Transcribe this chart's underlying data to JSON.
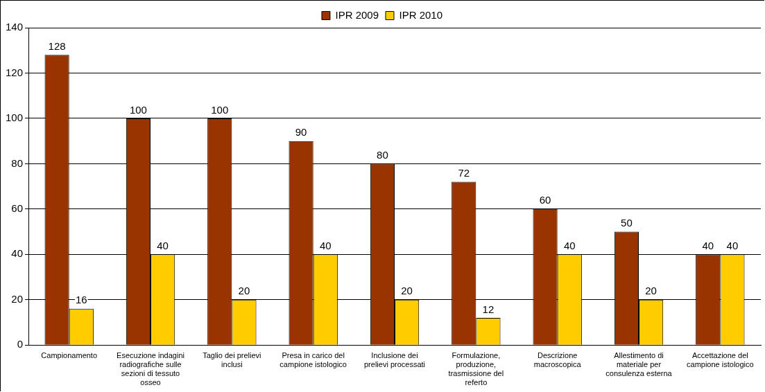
{
  "chart_data": {
    "type": "bar",
    "categories": [
      "Campionamento",
      "Esecuzione indagini radiografiche sulle sezioni di tessuto osseo",
      "Taglio dei prelievi inclusi",
      "Presa in carico del campione istologico",
      "Inclusione dei prelievi processati",
      "Formulazione, produzione, trasmissione del referto",
      "Descrizione macroscopica",
      "Allestimento di materiale per consulenza esterna",
      "Accettazione del campione istologico"
    ],
    "series": [
      {
        "name": "IPR 2009",
        "color": "#993300",
        "values": [
          128,
          100,
          100,
          90,
          80,
          72,
          60,
          50,
          40
        ]
      },
      {
        "name": "IPR 2010",
        "color": "#ffcc00",
        "values": [
          16,
          40,
          20,
          40,
          20,
          12,
          40,
          20,
          40
        ]
      }
    ],
    "ylim": [
      0,
      140
    ],
    "yticks": [
      0,
      20,
      40,
      60,
      80,
      100,
      120,
      140
    ],
    "grid": "y",
    "legend": "top",
    "data_labels": true
  }
}
